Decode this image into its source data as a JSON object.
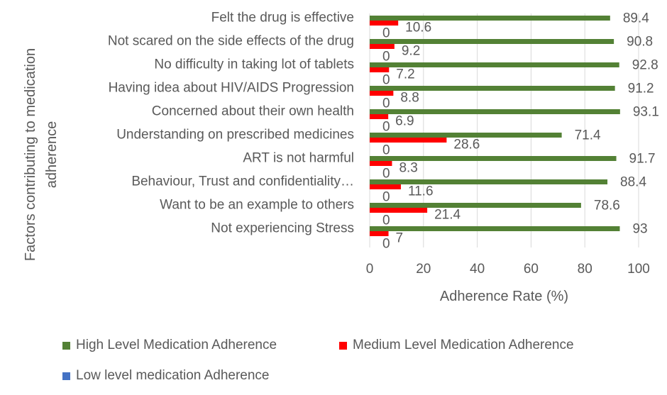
{
  "chart_data": {
    "type": "bar",
    "orientation": "horizontal",
    "categories": [
      "Felt the drug is effective",
      "Not scared on the side effects of the drug",
      "No difficulty in taking lot of tablets",
      "Having idea about HIV/AIDS Progression",
      "Concerned about their own health",
      "Understanding on prescribed medicines",
      "ART is not harmful",
      "Behaviour, Trust and confidentiality…",
      "Want to be an example to others",
      "Not experiencing Stress"
    ],
    "series": [
      {
        "name": "High Level Medication Adherence",
        "color": "#538135",
        "values": [
          89.4,
          90.8,
          92.8,
          91.2,
          93.1,
          71.4,
          91.7,
          88.4,
          78.6,
          93
        ],
        "labels": [
          "89.4",
          "90.8",
          "92.8",
          "91.2",
          "93.1",
          "71.4",
          "91.7",
          "88.4",
          "78.6",
          "93"
        ]
      },
      {
        "name": "Medium Level Medication Adherence",
        "color": "#FF0000",
        "values": [
          10.6,
          9.2,
          7.2,
          8.8,
          6.9,
          28.6,
          8.3,
          11.6,
          21.4,
          7
        ],
        "labels": [
          "10.6",
          "9.2",
          "7.2",
          "8.8",
          "6.9",
          "28.6",
          "8.3",
          "11.6",
          "21.4",
          "7"
        ]
      },
      {
        "name": "Low level medication Adherence",
        "color": "#4472C4",
        "values": [
          0,
          0,
          0,
          0,
          0,
          0,
          0,
          0,
          0,
          0
        ],
        "labels": [
          "0",
          "0",
          "0",
          "0",
          "0",
          "0",
          "0",
          "0",
          "0",
          "0"
        ]
      }
    ],
    "xlabel": "Adherence Rate (%)",
    "ylabel": "Factors contributing to medication adherence",
    "ylabel_lines": [
      "Factors contributing to medication",
      "adherence"
    ],
    "xlim": [
      0,
      100
    ],
    "xticks": [
      "0",
      "20",
      "40",
      "60",
      "80",
      "100"
    ],
    "grid": true,
    "legend_position": "bottom"
  }
}
